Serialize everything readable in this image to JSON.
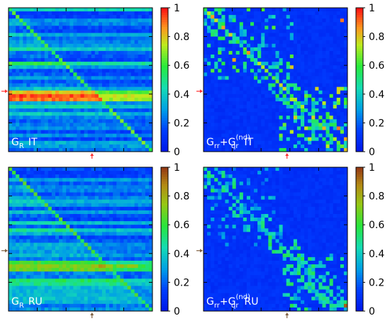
{
  "chart_data": [
    {
      "type": "heatmap",
      "label_main": "G",
      "label_sub": "R",
      "label_sup": "",
      "label_tail": "IT",
      "colorbar_ticks": [
        "0",
        "0.2",
        "0.4",
        "0.6",
        "0.8",
        "1"
      ],
      "colormap": "jet",
      "arrow_color": "#ff3030",
      "vlim": [
        0,
        1
      ],
      "grid_size": 40,
      "pattern": "GR_IT"
    },
    {
      "type": "heatmap",
      "label_main": "G",
      "label_sub": "rr",
      "label_plus": "+G",
      "label_sub2": "qr",
      "label_sup": "(nd)",
      "label_tail": "IT",
      "colorbar_ticks": [
        "0",
        "0.2",
        "0.4",
        "0.6",
        "0.8",
        "1"
      ],
      "colormap": "jet",
      "arrow_color": "#ff3030",
      "vlim": [
        0,
        1
      ],
      "grid_size": 40,
      "pattern": "GrrGqr_IT"
    },
    {
      "type": "heatmap",
      "label_main": "G",
      "label_sub": "R",
      "label_sup": "",
      "label_tail": "RU",
      "colorbar_ticks": [
        "0",
        "0.2",
        "0.4",
        "0.6",
        "0.8",
        "1"
      ],
      "colormap": "blue-green-yellow-brown",
      "arrow_color": "#806040",
      "vlim": [
        0,
        1
      ],
      "grid_size": 40,
      "pattern": "GR_RU"
    },
    {
      "type": "heatmap",
      "label_main": "G",
      "label_sub": "rr",
      "label_plus": "+G",
      "label_sub2": "qr",
      "label_sup": "(nd)",
      "label_tail": "RU",
      "colorbar_ticks": [
        "0",
        "0.2",
        "0.4",
        "0.6",
        "0.8",
        "1"
      ],
      "colormap": "blue-green-yellow-brown",
      "arrow_color": "#806040",
      "vlim": [
        0,
        1
      ],
      "grid_size": 40,
      "pattern": "GrrGqr_RU"
    }
  ]
}
